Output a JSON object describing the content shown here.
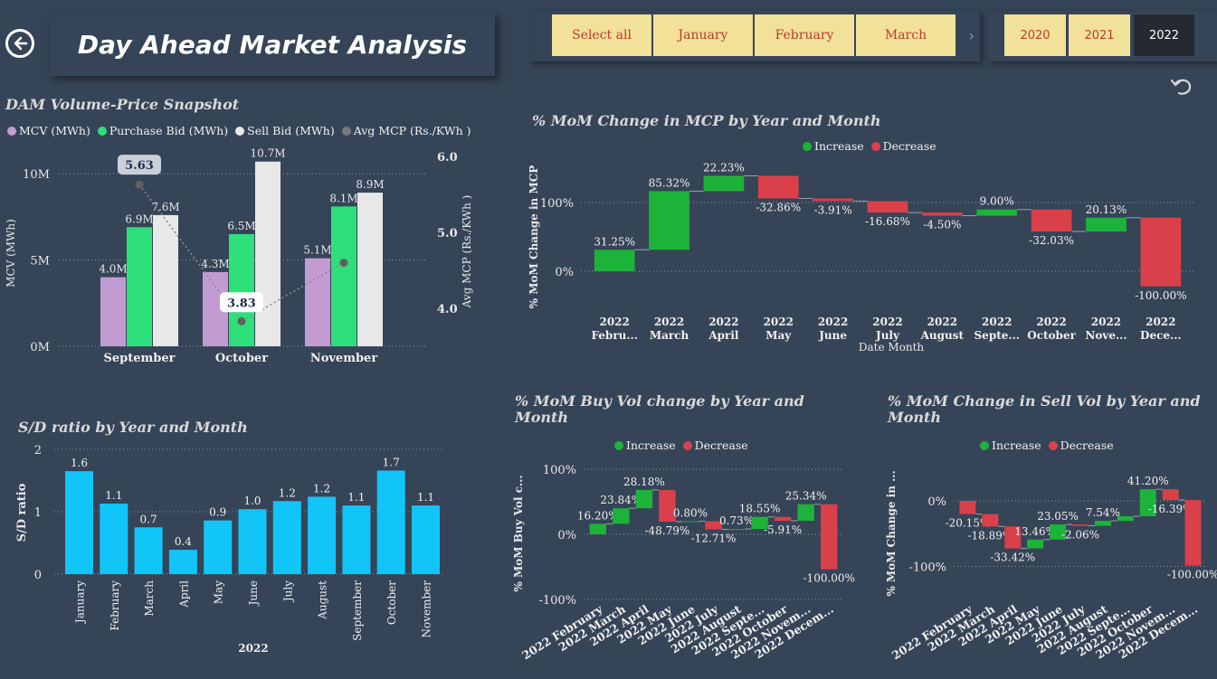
{
  "header": {
    "title": "Day Ahead Market Analysis",
    "back_icon": "arrow-left-circle-icon"
  },
  "month_slicer": {
    "items": [
      "Select all",
      "January",
      "February",
      "March"
    ],
    "more_icon": "chevron-right-icon"
  },
  "year_slicer": {
    "items": [
      "2020",
      "2021",
      "2022"
    ],
    "selected": "2022"
  },
  "toolbar": {
    "undo_icon": "undo-icon"
  },
  "colors": {
    "background": "#364457",
    "increase": "#1db33a",
    "decrease": "#d9404a",
    "mcv": "#c39bd3",
    "purchase": "#2ee07a",
    "sell": "#e8e8e8",
    "mcp": "#7a7a7a",
    "sd_bar": "#12c5f8",
    "slicer": "#f2e199"
  },
  "chart_data": [
    {
      "id": "dam_snapshot",
      "type": "bar",
      "title": "DAM Volume-Price Snapshot",
      "categories": [
        "September",
        "October",
        "November"
      ],
      "series": [
        {
          "name": "MCV (MWh)",
          "values": [
            4.0,
            4.3,
            5.1
          ],
          "labels": [
            "4.0M",
            "4.3M",
            "5.1M"
          ]
        },
        {
          "name": "Purchase Bid (MWh)",
          "values": [
            6.9,
            6.5,
            8.1
          ],
          "labels": [
            "6.9M",
            "6.5M",
            "8.1M"
          ]
        },
        {
          "name": "Sell Bid (MWh)",
          "values": [
            7.6,
            10.7,
            8.9
          ],
          "labels": [
            "7.6M",
            "10.7M",
            "8.9M"
          ]
        },
        {
          "name": "Avg MCP (Rs./KWh )",
          "type": "line",
          "values": [
            5.63,
            3.83,
            4.6
          ],
          "labels": [
            "5.63",
            "3.83",
            ""
          ]
        }
      ],
      "ylabel": "MCV (MWh)",
      "y2label": "Avg MCP (Rs./KWh )",
      "yticks": [
        "0M",
        "5M",
        "10M"
      ],
      "ylim": [
        0,
        11
      ],
      "y2ticks": [
        "4.0",
        "5.0",
        "6.0"
      ],
      "y2lim": [
        3.5,
        6.0
      ]
    },
    {
      "id": "mcp_mom",
      "type": "waterfall",
      "title": "% MoM Change in MCP by Year and Month",
      "legend": [
        "Increase",
        "Decrease"
      ],
      "categories": [
        [
          "2022",
          "Febru..."
        ],
        [
          "2022",
          "March"
        ],
        [
          "2022",
          "April"
        ],
        [
          "2022",
          "May"
        ],
        [
          "2022",
          "June"
        ],
        [
          "2022",
          "July"
        ],
        [
          "2022",
          "August"
        ],
        [
          "2022",
          "Septe..."
        ],
        [
          "2022",
          "October"
        ],
        [
          "2022",
          "Nove..."
        ],
        [
          "2022",
          "Dece..."
        ]
      ],
      "values": [
        31.25,
        85.32,
        22.23,
        -32.86,
        -3.91,
        -16.68,
        -4.5,
        9.0,
        -32.03,
        20.13,
        -100.0
      ],
      "labels": [
        "31.25%",
        "85.32%",
        "22.23%",
        "-32.86%",
        "-3.91%",
        "-16.68%",
        "-4.50%",
        "9.00%",
        "-32.03%",
        "20.13%",
        "-100.00%"
      ],
      "xlabel": "Date Month",
      "ylabel": "% MoM Change in MCP",
      "yticks": [
        "0%",
        "100%"
      ]
    },
    {
      "id": "sd_ratio",
      "type": "bar",
      "title": "S/D ratio by Year and Month",
      "categories": [
        "January",
        "February",
        "March",
        "April",
        "May",
        "June",
        "July",
        "August",
        "September",
        "October",
        "November"
      ],
      "values": [
        1.65,
        1.13,
        0.75,
        0.39,
        0.86,
        1.04,
        1.17,
        1.24,
        1.1,
        1.66,
        1.1
      ],
      "labels": [
        "1.6",
        "1.1",
        "0.7",
        "0.4",
        "0.9",
        "1.0",
        "1.2",
        "1.2",
        "1.1",
        "1.7",
        "1.1"
      ],
      "xlabel": "2022",
      "ylabel": "S/D ratio",
      "yticks": [
        "0",
        "1",
        "2"
      ],
      "ylim": [
        0,
        2
      ]
    },
    {
      "id": "buy_mom",
      "type": "waterfall",
      "title": "% MoM Buy Vol change by Year and Month",
      "legend": [
        "Increase",
        "Decrease"
      ],
      "categories": [
        "2022 February",
        "2022 March",
        "2022 April",
        "2022 May",
        "2022 June",
        "2022 July",
        "2022 August",
        "2022 Septe...",
        "2022 October",
        "2022 Novem...",
        "2022 Decem..."
      ],
      "values": [
        16.2,
        23.84,
        28.18,
        -48.79,
        0.8,
        -12.71,
        0.73,
        18.55,
        -5.91,
        25.34,
        -100.0
      ],
      "labels": [
        "16.20%",
        "23.84%",
        "28.18%",
        "-48.79%",
        "0.80%",
        "-12.71%",
        "0.73%",
        "18.55%",
        "-5.91%",
        "25.34%",
        "-100.00%"
      ],
      "ylabel": "% MoM Buy Vol c...",
      "yticks": [
        "100%",
        "0%",
        "-100%"
      ]
    },
    {
      "id": "sell_mom",
      "type": "waterfall",
      "title": "% MoM Change in Sell Vol by Year and Month",
      "legend": [
        "Increase",
        "Decrease"
      ],
      "categories": [
        "2022 February",
        "2022 March",
        "2022 April",
        "2022 May",
        "2022 June",
        "2022 July",
        "2022 August",
        "2022 Septe...",
        "2022 October",
        "2022 Novem...",
        "2022 Decem..."
      ],
      "values": [
        -20.15,
        -18.89,
        -33.42,
        13.46,
        23.05,
        -2.06,
        7.54,
        7.0,
        41.2,
        -16.39,
        -100.0
      ],
      "labels": [
        "-20.15%",
        "-18.89%",
        "-33.42%",
        "13.46%",
        "23.05%",
        "-2.06%",
        "7.54%",
        "",
        "41.20%",
        "-16.39%",
        "-100.00%"
      ],
      "ylabel": "% MoM Change in ...",
      "yticks": [
        "0%",
        "-100%"
      ]
    }
  ]
}
